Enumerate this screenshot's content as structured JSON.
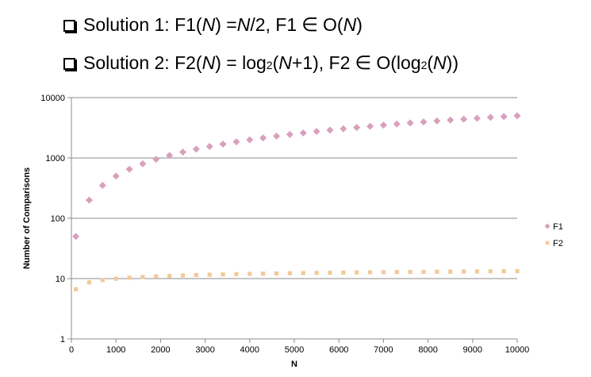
{
  "bullets": [
    {
      "prefix": "Solution 1: F1(",
      "var1": "N",
      "mid1": ") = ",
      "var2": "N",
      "mid2": "/2, F1 ",
      "elem": "∈",
      "mid3": " O(",
      "var3": "N",
      "suffix": ")"
    },
    {
      "prefix": "Solution 2: F2(",
      "var1": "N",
      "mid1": ") = log",
      "sub1": "2",
      "mid2": "(",
      "var2": "N",
      "mid3": "+1), F2 ",
      "elem": "∈",
      "mid4": " O(log",
      "sub2": "2",
      "mid5": "(",
      "var3": "N",
      "suffix": "))"
    }
  ],
  "chart_data": {
    "type": "scatter",
    "title": "",
    "xlabel": "N",
    "ylabel": "Number of Comparisons",
    "x_ticks": [
      "0",
      "1000",
      "2000",
      "3000",
      "4000",
      "5000",
      "6000",
      "7000",
      "8000",
      "9000",
      "10000"
    ],
    "y_ticks": [
      "1",
      "10",
      "100",
      "1000",
      "10000"
    ],
    "xlim": [
      0,
      10000
    ],
    "ylim": [
      1,
      10000
    ],
    "y_scale": "log",
    "grid": "horizontal",
    "legend_position": "right",
    "series": [
      {
        "name": "F1",
        "marker": "diamond",
        "color": "#d9a0bd",
        "points": [
          [
            100,
            50
          ],
          [
            400,
            200
          ],
          [
            700,
            350
          ],
          [
            1000,
            500
          ],
          [
            1300,
            650
          ],
          [
            1600,
            800
          ],
          [
            1900,
            950
          ],
          [
            2200,
            1100
          ],
          [
            2500,
            1250
          ],
          [
            2800,
            1400
          ],
          [
            3100,
            1550
          ],
          [
            3400,
            1700
          ],
          [
            3700,
            1850
          ],
          [
            4000,
            2000
          ],
          [
            4300,
            2150
          ],
          [
            4600,
            2300
          ],
          [
            4900,
            2450
          ],
          [
            5200,
            2600
          ],
          [
            5500,
            2750
          ],
          [
            5800,
            2900
          ],
          [
            6100,
            3050
          ],
          [
            6400,
            3200
          ],
          [
            6700,
            3350
          ],
          [
            7000,
            3500
          ],
          [
            7300,
            3650
          ],
          [
            7600,
            3800
          ],
          [
            7900,
            3950
          ],
          [
            8200,
            4100
          ],
          [
            8500,
            4250
          ],
          [
            8800,
            4400
          ],
          [
            9100,
            4550
          ],
          [
            9400,
            4700
          ],
          [
            9700,
            4850
          ],
          [
            10000,
            5000
          ]
        ]
      },
      {
        "name": "F2",
        "marker": "square",
        "color": "#f2c99a",
        "points": [
          [
            100,
            6.66
          ],
          [
            400,
            8.65
          ],
          [
            700,
            9.45
          ],
          [
            1000,
            9.97
          ],
          [
            1300,
            10.34
          ],
          [
            1600,
            10.64
          ],
          [
            1900,
            10.89
          ],
          [
            2200,
            11.1
          ],
          [
            2500,
            11.29
          ],
          [
            2800,
            11.45
          ],
          [
            3100,
            11.6
          ],
          [
            3400,
            11.73
          ],
          [
            3700,
            11.85
          ],
          [
            4000,
            11.97
          ],
          [
            4300,
            12.07
          ],
          [
            4600,
            12.17
          ],
          [
            4900,
            12.26
          ],
          [
            5200,
            12.34
          ],
          [
            5500,
            12.43
          ],
          [
            5800,
            12.5
          ],
          [
            6100,
            12.57
          ],
          [
            6400,
            12.64
          ],
          [
            6700,
            12.71
          ],
          [
            7000,
            12.77
          ],
          [
            7300,
            12.83
          ],
          [
            7600,
            12.89
          ],
          [
            7900,
            12.95
          ],
          [
            8200,
            13.0
          ],
          [
            8500,
            13.05
          ],
          [
            8800,
            13.1
          ],
          [
            9100,
            13.15
          ],
          [
            9400,
            13.2
          ],
          [
            9700,
            13.24
          ],
          [
            10000,
            13.29
          ]
        ]
      }
    ]
  }
}
